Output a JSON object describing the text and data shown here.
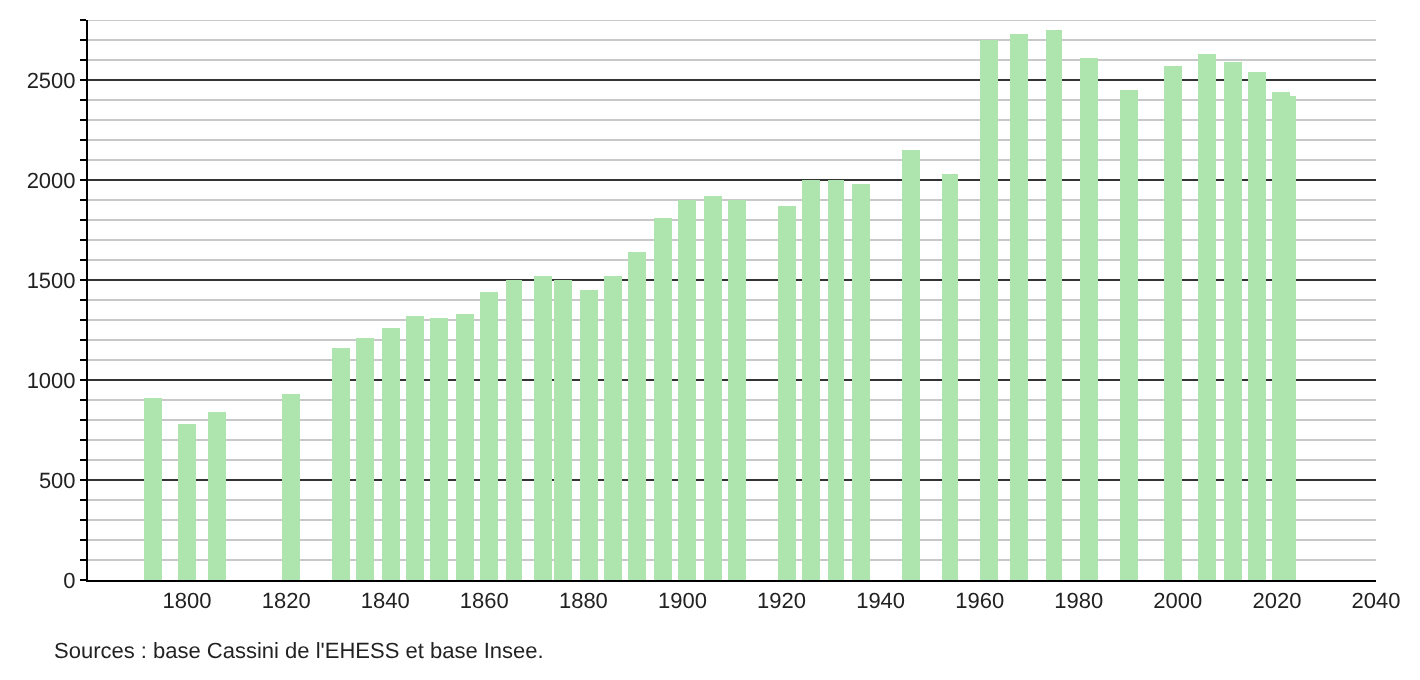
{
  "chart_data": {
    "type": "bar",
    "color": "#aee4ae",
    "x": [
      1793,
      1800,
      1806,
      1821,
      1831,
      1836,
      1841,
      1846,
      1851,
      1856,
      1861,
      1866,
      1872,
      1876,
      1881,
      1886,
      1891,
      1896,
      1901,
      1906,
      1911,
      1921,
      1926,
      1931,
      1936,
      1946,
      1954,
      1962,
      1968,
      1975,
      1982,
      1990,
      1999,
      2006,
      2011,
      2016,
      2021,
      2022
    ],
    "values": [
      910,
      780,
      840,
      930,
      1160,
      1210,
      1260,
      1320,
      1310,
      1330,
      1440,
      1500,
      1520,
      1500,
      1450,
      1520,
      1640,
      1810,
      1900,
      1920,
      1900,
      1870,
      2000,
      2000,
      1980,
      2150,
      2030,
      2700,
      2730,
      2750,
      2610,
      2450,
      2570,
      2630,
      2590,
      2540,
      2440,
      2420
    ],
    "xlim": [
      1780,
      2040
    ],
    "xticks": [
      1800,
      1820,
      1840,
      1860,
      1880,
      1900,
      1920,
      1940,
      1960,
      1980,
      2000,
      2020,
      2040
    ],
    "ylim": [
      0,
      2800
    ],
    "yticks": [
      0,
      {
        "value": 100,
        "label": null
      },
      {
        "value": 200,
        "label": null
      },
      {
        "value": 300,
        "label": null
      },
      {
        "value": 400,
        "label": null
      },
      500,
      {
        "value": 600,
        "label": null
      },
      {
        "value": 700,
        "label": null
      },
      {
        "value": 800,
        "label": null
      },
      {
        "value": 900,
        "label": null
      },
      1000,
      {
        "value": 1100,
        "label": null
      },
      {
        "value": 1200,
        "label": null
      },
      {
        "value": 1300,
        "label": null
      },
      {
        "value": 1400,
        "label": null
      },
      1500,
      {
        "value": 1600,
        "label": null
      },
      {
        "value": 1700,
        "label": null
      },
      {
        "value": 1800,
        "label": null
      },
      {
        "value": 1900,
        "label": null
      },
      2000,
      {
        "value": 2100,
        "label": null
      },
      {
        "value": 2200,
        "label": null
      },
      {
        "value": 2300,
        "label": null
      },
      {
        "value": 2400,
        "label": null
      },
      2500,
      {
        "value": 2600,
        "label": null
      },
      {
        "value": 2700,
        "label": null
      },
      {
        "value": 2800,
        "label": null
      }
    ],
    "grid": "y",
    "annotations": [
      "Sources : base Cassini de l'EHESS et base Insee."
    ]
  }
}
